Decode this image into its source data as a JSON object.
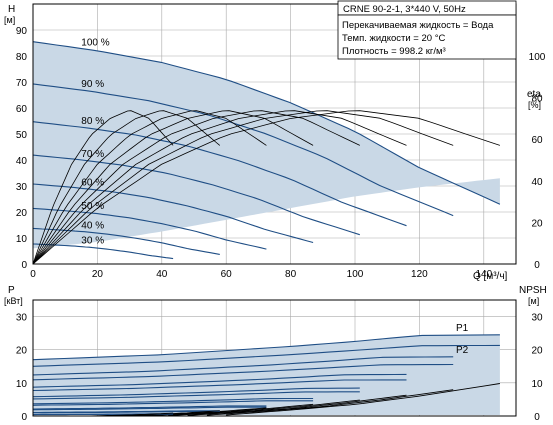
{
  "title": "CRNE 90-2-1, 3*440 V, 50Hz",
  "info_lines": [
    "Перекачиваемая жидкость = Вода",
    "Темп. жидкости = 20 °C",
    "Плотность = 998.2 кг/м³"
  ],
  "colors": {
    "envelope": "#c9d8e6",
    "curve": "#1f4e85",
    "grid": "#aaaaaa",
    "eta": "#000000"
  },
  "chart_data": [
    {
      "type": "line",
      "name_id": "qh",
      "axes": {
        "left_label": "H",
        "left_unit": "[м]",
        "right_label": "eta",
        "right_unit": "[%]",
        "x_label": "Q [м³/ч]",
        "xlim": [
          0,
          150
        ],
        "ylim": [
          0,
          100
        ],
        "eta_lim": [
          0,
          100
        ],
        "x_ticks": [
          "0",
          "20",
          "40",
          "60",
          "80",
          "100",
          "120",
          "140"
        ],
        "y_ticks": [
          "0",
          "10",
          "20",
          "30",
          "40",
          "50",
          "60",
          "70",
          "80",
          "90"
        ],
        "eta_ticks": [
          "0",
          "20",
          "40",
          "60",
          "80",
          "100"
        ],
        "grid": true
      },
      "speed_labels": [
        "100 %",
        "90 %",
        "80 %",
        "70 %",
        "60 %",
        "50 %",
        "40 %",
        "30 %"
      ],
      "speed_fractions": [
        1.0,
        0.9,
        0.8,
        0.7,
        0.6,
        0.5,
        0.4,
        0.3
      ],
      "qh_100": [
        [
          0,
          85.5
        ],
        [
          20,
          82
        ],
        [
          40,
          77.5
        ],
        [
          60,
          71
        ],
        [
          80,
          62
        ],
        [
          100,
          51
        ],
        [
          120,
          37
        ],
        [
          145,
          23
        ]
      ],
      "eta_100": [
        [
          0,
          0
        ],
        [
          20,
          27
        ],
        [
          40,
          48
        ],
        [
          60,
          62
        ],
        [
          80,
          70
        ],
        [
          100,
          74
        ],
        [
          120,
          70
        ],
        [
          145,
          57
        ]
      ],
      "envelope_lower": [
        [
          0,
          6
        ],
        [
          20,
          8.5
        ],
        [
          40,
          12.5
        ],
        [
          60,
          17
        ],
        [
          80,
          21.5
        ],
        [
          100,
          26
        ],
        [
          120,
          29.5
        ],
        [
          145,
          33
        ]
      ]
    },
    {
      "type": "line",
      "name_id": "power",
      "axes": {
        "left_label": "P",
        "left_unit": "[кВт]",
        "right_label": "NPSH",
        "right_unit": "[м]",
        "xlim": [
          0,
          150
        ],
        "ylim": [
          0,
          35
        ],
        "npsh_lim": [
          0,
          35
        ],
        "y_ticks": [
          "0",
          "10",
          "20",
          "30"
        ],
        "npsh_ticks": [
          "0",
          "10",
          "20",
          "30"
        ],
        "grid": true
      },
      "series_labels": [
        "P1",
        "P2"
      ],
      "p1_100": [
        [
          0,
          17
        ],
        [
          40,
          18.5
        ],
        [
          80,
          21
        ],
        [
          100,
          22.5
        ],
        [
          120,
          24.3
        ],
        [
          145,
          24.5
        ]
      ],
      "p2_100": [
        [
          0,
          15
        ],
        [
          40,
          16.3
        ],
        [
          80,
          18.5
        ],
        [
          100,
          19.8
        ],
        [
          120,
          21.2
        ],
        [
          145,
          21.3
        ]
      ],
      "npsh": [
        [
          60,
          0.3
        ],
        [
          80,
          1.8
        ],
        [
          100,
          3.5
        ],
        [
          120,
          6
        ],
        [
          145,
          9.8
        ]
      ]
    }
  ]
}
